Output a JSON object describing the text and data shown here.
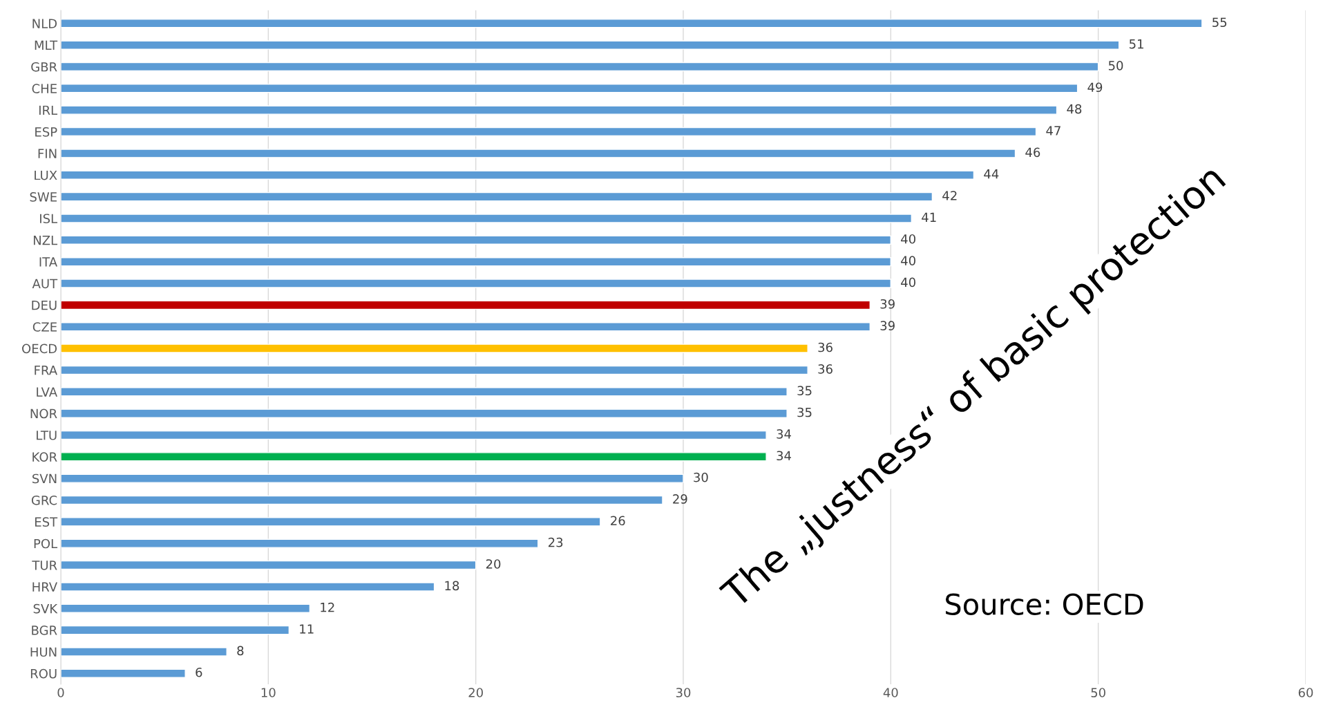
{
  "chart_data": {
    "type": "bar",
    "orientation": "horizontal",
    "categories": [
      "NLD",
      "MLT",
      "GBR",
      "CHE",
      "IRL",
      "ESP",
      "FIN",
      "LUX",
      "SWE",
      "ISL",
      "NZL",
      "ITA",
      "AUT",
      "DEU",
      "CZE",
      "OECD",
      "FRA",
      "LVA",
      "NOR",
      "LTU",
      "KOR",
      "SVN",
      "GRC",
      "EST",
      "POL",
      "TUR",
      "HRV",
      "SVK",
      "BGR",
      "HUN",
      "ROU"
    ],
    "values": [
      55,
      51,
      50,
      49,
      48,
      47,
      46,
      44,
      42,
      41,
      40,
      40,
      40,
      39,
      39,
      36,
      36,
      35,
      35,
      34,
      34,
      30,
      29,
      26,
      23,
      20,
      18,
      12,
      11,
      8,
      6
    ],
    "colors": [
      "#5b9bd5",
      "#5b9bd5",
      "#5b9bd5",
      "#5b9bd5",
      "#5b9bd5",
      "#5b9bd5",
      "#5b9bd5",
      "#5b9bd5",
      "#5b9bd5",
      "#5b9bd5",
      "#5b9bd5",
      "#5b9bd5",
      "#5b9bd5",
      "#c00000",
      "#5b9bd5",
      "#ffc000",
      "#5b9bd5",
      "#5b9bd5",
      "#5b9bd5",
      "#5b9bd5",
      "#00b050",
      "#5b9bd5",
      "#5b9bd5",
      "#5b9bd5",
      "#5b9bd5",
      "#5b9bd5",
      "#5b9bd5",
      "#5b9bd5",
      "#5b9bd5",
      "#5b9bd5",
      "#5b9bd5"
    ],
    "xlim": [
      0,
      60
    ],
    "xticks": [
      0,
      10,
      20,
      30,
      40,
      50,
      60
    ],
    "grid": "x",
    "data_labels": true,
    "annotations": [
      "The „justness“ of basic protection",
      "Source: OECD"
    ]
  }
}
